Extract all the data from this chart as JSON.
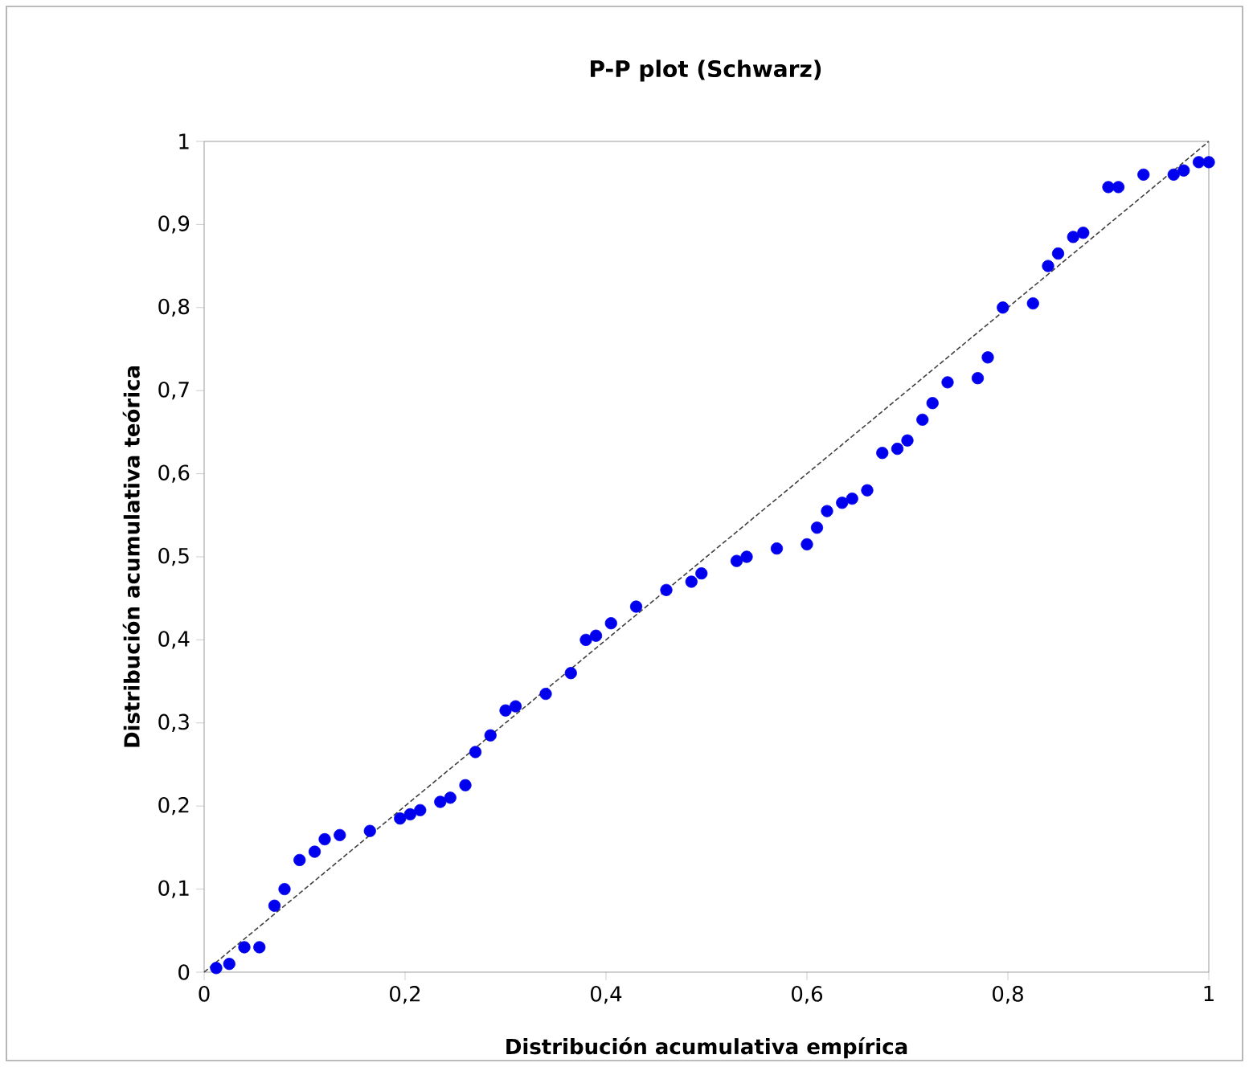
{
  "chart_data": {
    "type": "scatter",
    "title": "P-P plot (Schwarz)",
    "xlabel": "Distribución acumulativa  empírica",
    "ylabel": "Distribución acumulativa  teórica",
    "xlim": [
      0,
      1
    ],
    "ylim": [
      0,
      1
    ],
    "xticks": [
      0,
      {
        "value": 0.2,
        "label": "0,2"
      },
      {
        "value": 0.4,
        "label": "0,4"
      },
      {
        "value": 0.6,
        "label": "0,6"
      },
      {
        "value": 0.8,
        "label": "0,8"
      },
      1
    ],
    "yticks": [
      0,
      {
        "value": 0.1,
        "label": "0,1"
      },
      {
        "value": 0.2,
        "label": "0,2"
      },
      {
        "value": 0.3,
        "label": "0,3"
      },
      {
        "value": 0.4,
        "label": "0,4"
      },
      {
        "value": 0.5,
        "label": "0,5"
      },
      {
        "value": 0.6,
        "label": "0,6"
      },
      {
        "value": 0.7,
        "label": "0,7"
      },
      {
        "value": 0.8,
        "label": "0,8"
      },
      {
        "value": 0.9,
        "label": "0,9"
      },
      1
    ],
    "grid": false,
    "marker": "circle",
    "series": [
      {
        "color": "#0000ee",
        "x": [
          0.012,
          0.025,
          0.04,
          0.055,
          0.07,
          0.08,
          0.095,
          0.11,
          0.12,
          0.135,
          0.165,
          0.195,
          0.205,
          0.215,
          0.235,
          0.245,
          0.26,
          0.27,
          0.285,
          0.3,
          0.31,
          0.34,
          0.365,
          0.38,
          0.39,
          0.405,
          0.43,
          0.46,
          0.485,
          0.495,
          0.53,
          0.54,
          0.57,
          0.6,
          0.61,
          0.62,
          0.635,
          0.645,
          0.66,
          0.675,
          0.69,
          0.7,
          0.715,
          0.725,
          0.74,
          0.77,
          0.78,
          0.795,
          0.825,
          0.84,
          0.85,
          0.865,
          0.875,
          0.9,
          0.91,
          0.935,
          0.965,
          0.975,
          0.99,
          1.0
        ],
        "values": [
          0.005,
          0.01,
          0.03,
          0.03,
          0.08,
          0.1,
          0.135,
          0.145,
          0.16,
          0.165,
          0.17,
          0.185,
          0.19,
          0.195,
          0.205,
          0.21,
          0.225,
          0.265,
          0.285,
          0.315,
          0.32,
          0.335,
          0.36,
          0.4,
          0.405,
          0.42,
          0.44,
          0.46,
          0.47,
          0.48,
          0.495,
          0.5,
          0.51,
          0.515,
          0.535,
          0.555,
          0.565,
          0.57,
          0.58,
          0.625,
          0.63,
          0.64,
          0.665,
          0.685,
          0.71,
          0.715,
          0.74,
          0.8,
          0.805,
          0.85,
          0.865,
          0.885,
          0.89,
          0.945,
          0.945,
          0.96,
          0.96,
          0.965,
          0.975,
          0.975
        ]
      },
      {
        "type": "line",
        "color": "#404040",
        "line_style": "dashed",
        "marker": "none",
        "x": [
          0,
          1
        ],
        "values": [
          0,
          1
        ]
      }
    ]
  }
}
